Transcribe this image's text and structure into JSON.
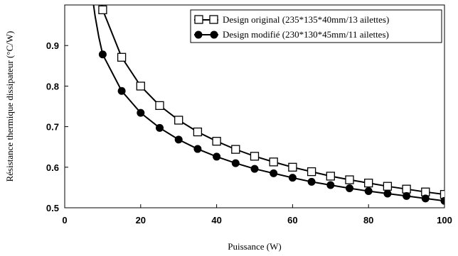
{
  "chart_data": {
    "type": "line",
    "xlabel": "Puissance (W)",
    "ylabel": "Résistance thermique dissipateur (°C/W)",
    "xlim": [
      0,
      100
    ],
    "ylim": [
      0.5,
      1.0
    ],
    "x_ticks": [
      "0",
      "20",
      "40",
      "60",
      "80",
      "100"
    ],
    "y_ticks": [
      "0.5",
      "0.6",
      "0.7",
      "0.8",
      "0.9"
    ],
    "legend_position": "top-right",
    "grid": false,
    "series": [
      {
        "name": "Design original (235*135*40mm/13 ailettes)",
        "marker": "open-square",
        "x": [
          10,
          15,
          20,
          25,
          30,
          35,
          40,
          45,
          50,
          55,
          60,
          65,
          70,
          75,
          80,
          85,
          90,
          95,
          100
        ],
        "y": [
          0.988,
          0.871,
          0.8,
          0.752,
          0.716,
          0.687,
          0.664,
          0.644,
          0.627,
          0.613,
          0.6,
          0.589,
          0.578,
          0.569,
          0.561,
          0.553,
          0.546,
          0.539,
          0.533
        ]
      },
      {
        "name": "Design modifié (230*130*45mm/11 ailettes)",
        "marker": "filled-circle",
        "x": [
          10,
          15,
          20,
          25,
          30,
          35,
          40,
          45,
          50,
          55,
          60,
          65,
          70,
          75,
          80,
          85,
          90,
          95,
          100
        ],
        "y": [
          0.878,
          0.788,
          0.734,
          0.697,
          0.668,
          0.645,
          0.626,
          0.61,
          0.596,
          0.585,
          0.574,
          0.564,
          0.556,
          0.548,
          0.541,
          0.535,
          0.529,
          0.523,
          0.517
        ]
      }
    ]
  }
}
